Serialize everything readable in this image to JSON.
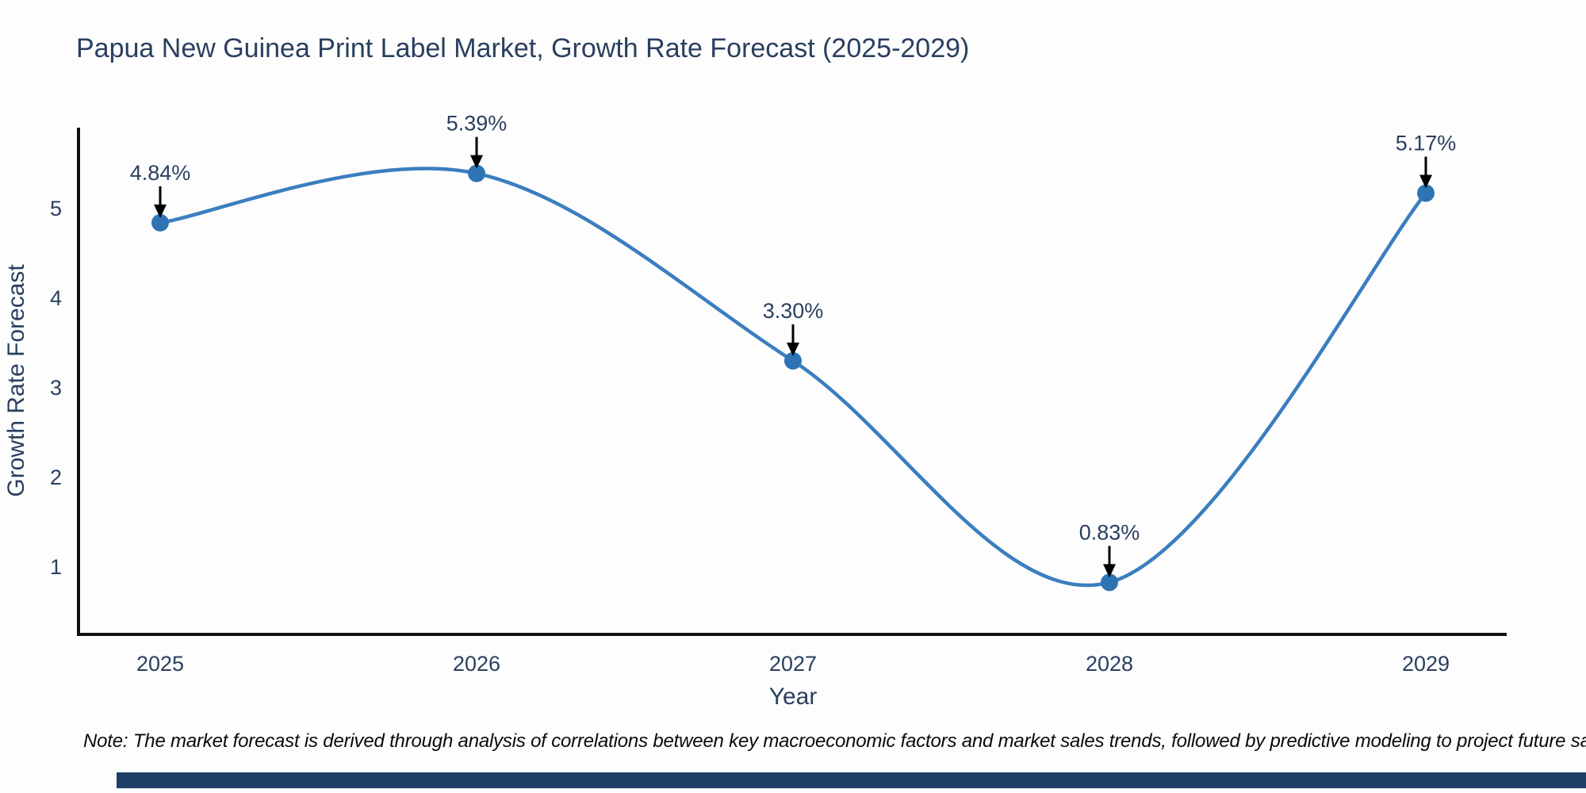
{
  "title": "Papua New Guinea Print Label Market, Growth Rate Forecast (2025-2029)",
  "note": "Note: The market forecast is derived through analysis of correlations between key macroeconomic factors and market sales trends, followed by predictive modeling to project future sales.",
  "colors": {
    "background": "#fdfdfd",
    "title_text": "#2a3f5f",
    "axis_line": "#111111",
    "line": "#3a7ebf",
    "marker": "#2e74b4",
    "annotation_text": "#2a3f5f",
    "arrow": "#000000",
    "note_text": "#0a0a0a",
    "footer_bar": "#1d3e66"
  },
  "chart_data": {
    "type": "line",
    "title": "Papua New Guinea Print Label Market, Growth Rate Forecast (2025-2029)",
    "xlabel": "Year",
    "ylabel": "Growth Rate Forecast",
    "x": [
      2025,
      2026,
      2027,
      2028,
      2029
    ],
    "values": [
      4.84,
      5.39,
      3.3,
      0.83,
      5.17
    ],
    "point_labels": [
      "4.84%",
      "5.39%",
      "3.30%",
      "0.83%",
      "5.17%"
    ],
    "xticks": [
      "2025",
      "2026",
      "2027",
      "2028",
      "2029"
    ],
    "yticks": [
      1,
      2,
      3,
      4,
      5
    ],
    "xlim": [
      2024.74,
      2029.26
    ],
    "ylim": [
      0.25,
      5.9
    ],
    "line_shape": "spline",
    "grid": false,
    "legend": false,
    "annotations_have_arrows": true
  }
}
